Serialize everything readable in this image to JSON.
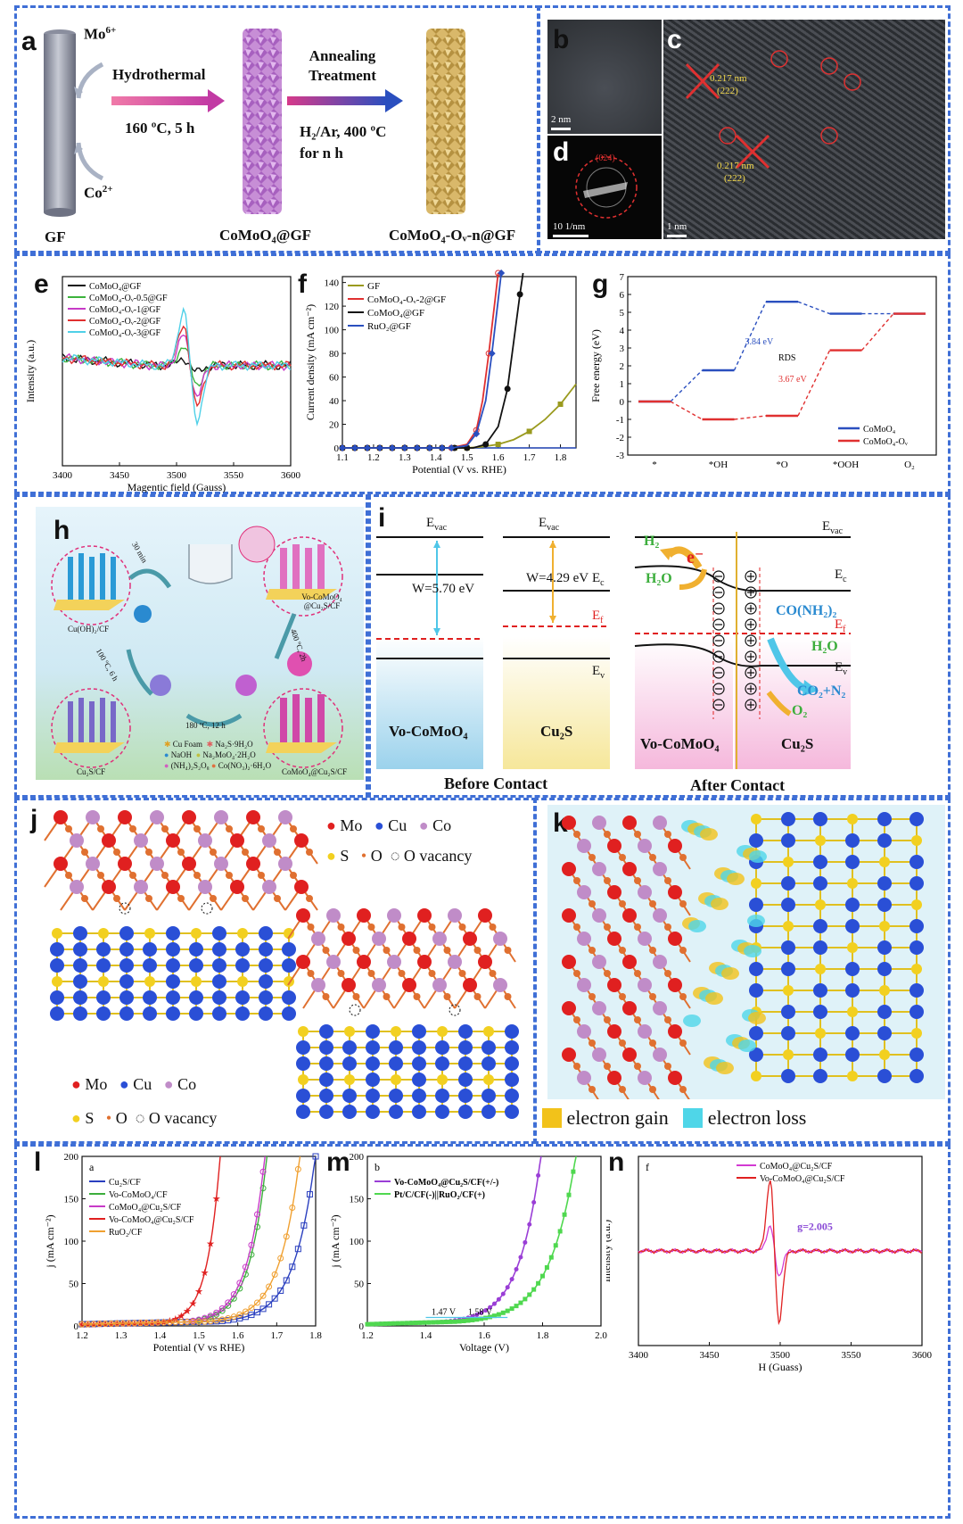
{
  "colors": {
    "frame": "#3f6fd6"
  },
  "panel_a": {
    "label": "a",
    "ion1": "Mo",
    "ion1_sup": "6+",
    "ion2": "Co",
    "ion2_sup": "2+",
    "step1_title": "Hydrothermal",
    "step1_cond": "160 ºC, 5 h",
    "step2_title": "Annealing Treatment",
    "step2_cond1": "H₂/Ar, 400 ºC",
    "step2_cond2": "for n h",
    "cap1": "GF",
    "cap2": "CoMoO₄@GF",
    "cap3": "CoMoO₄-Oᵥ-n@GF"
  },
  "panel_b": {
    "label": "b",
    "scale": "2 nm"
  },
  "panel_c": {
    "label": "c",
    "scale": "1 nm",
    "dspacing1": "0.217 nm",
    "plane1": "(222)",
    "dspacing2": "0.217 nm",
    "plane2": "(222)"
  },
  "panel_d": {
    "label": "d",
    "scale": "10 1/nm",
    "ring": "(024)"
  },
  "panel_e": {
    "label": "e",
    "xlabel": "Magentic field (Gauss)",
    "ylabel": "Intensity (a.u.)"
  },
  "panel_f": {
    "label": "f",
    "xlabel": "Potential (V vs. RHE)",
    "ylabel": "Current density (mA cm⁻²)"
  },
  "panel_g": {
    "label": "g",
    "ylabel": "Free energy (eV)",
    "steps": [
      "*",
      "*OH",
      "*O",
      "*OOH",
      "O₂"
    ],
    "ann1": "3.84 eV",
    "ann2": "3.67 eV",
    "ann3": "RDS",
    "legend": [
      "CoMoO₄",
      "CoMoO₄-Oᵥ"
    ]
  },
  "panel_h": {
    "label": "h",
    "s1": "Cu(OH)₂/CF",
    "s2": "Cu₂S/CF",
    "s3": "CoMoO₄@Cu₂S/CF",
    "s4": "Vo-CoMoO₄ @Cu₂S/CF",
    "t1": "30 min",
    "t2": "100 ºC, 6 h",
    "t3": "180 ºC, 12 h",
    "t4": "400 ºC, 2h",
    "legend": [
      "Cu Foam",
      "Na₂S·9H₂O",
      "NaOH",
      "Na₂MoO₄·2H₂O",
      "(NH₄)₂S₂O₈",
      "Co(NO₃)₂·6H₂O"
    ]
  },
  "panel_i": {
    "label": "i",
    "evac": "E",
    "evac_sub": "vac",
    "w1": "W=5.70 eV",
    "w2": "W=4.29 eV",
    "ec": "E",
    "ec_sub": "c",
    "ef": "E",
    "ef_sub": "f",
    "ev": "E",
    "ev_sub": "v",
    "mat1": "Vo-CoMoO₄",
    "mat2": "Cu₂S",
    "before": "Before Contact",
    "after": "After Contact",
    "h2": "H₂",
    "h2o": "H₂O",
    "electron": "e⁻",
    "urea": "CO(NH₂)₂",
    "h2o_b": "H₂O",
    "products": "CO₂+N₂",
    "o2": "O₂"
  },
  "panel_j": {
    "label": "j",
    "legend": [
      "Mo",
      "Cu",
      "Co",
      "S",
      "O",
      "O vacancy"
    ]
  },
  "panel_k": {
    "label": "k",
    "legend": [
      "electron gain",
      "electron loss"
    ]
  },
  "panel_l": {
    "label": "l",
    "sublabel": "a",
    "xlabel": "Potential (V vs RHE)",
    "ylabel": "j (mA cm⁻²)",
    "legend": [
      "Cu₂S/CF",
      "Vo-CoMoO₄/CF",
      "CoMoO₄@Cu₂S/CF",
      "Vo-CoMoO₄@Cu₂S/CF",
      "RuO₂/CF"
    ]
  },
  "panel_m": {
    "label": "m",
    "sublabel": "b",
    "xlabel": "Voltage (V)",
    "ylabel": "j (mA cm⁻²)",
    "legend": [
      "Vo-CoMoO₄@Cu₂S/CF(+/-)",
      "Pt/C/CF(-)||RuO₂/CF(+)"
    ],
    "ann1": "1.47 V",
    "ann2": "1.58 V"
  },
  "panel_n": {
    "label": "n",
    "sublabel": "f",
    "xlabel": "H (Guass)",
    "ylabel": "Intensity (a.u.)",
    "legend": [
      "CoMoO₄@Cu₂S/CF",
      "Vo-CoMoO₄@Cu₂S/CF"
    ],
    "gval": "g=2.005"
  },
  "chart_data": [
    {
      "type": "line",
      "title": "",
      "xlabel": "Magentic field (Gauss)",
      "ylabel": "Intensity (a.u.)",
      "xlim": [
        3400,
        3600
      ],
      "xticks": [
        3400,
        3450,
        3500,
        3550,
        3600
      ],
      "series": [
        {
          "name": "CoMoO₄@GF",
          "color": "#111111",
          "amp": 0.12
        },
        {
          "name": "CoMoO₄-Oᵥ-0.5@GF",
          "color": "#3cb33c",
          "amp": 0.35
        },
        {
          "name": "CoMoO₄-Oᵥ-1@GF",
          "color": "#c73ac7",
          "amp": 0.55
        },
        {
          "name": "CoMoO₄-Oᵥ-2@GF",
          "color": "#e03030",
          "amp": 0.75
        },
        {
          "name": "CoMoO₄-Oᵥ-3@GF",
          "color": "#4fd0e8",
          "amp": 1.0
        }
      ]
    },
    {
      "type": "line",
      "title": "",
      "xlabel": "Potential (V vs. RHE)",
      "ylabel": "Current density (mA cm⁻²)",
      "xlim": [
        1.1,
        1.85
      ],
      "ylim": [
        0,
        145
      ],
      "xticks": [
        1.1,
        1.2,
        1.3,
        1.4,
        1.5,
        1.6,
        1.7,
        1.8
      ],
      "yticks": [
        0,
        20,
        40,
        60,
        80,
        100,
        120,
        140
      ],
      "series": [
        {
          "name": "GF",
          "color": "#9a9a1e",
          "x": [
            1.5,
            1.55,
            1.6,
            1.65,
            1.7,
            1.75,
            1.8,
            1.85
          ],
          "y": [
            0,
            1,
            3,
            7,
            14,
            24,
            37,
            54
          ]
        },
        {
          "name": "CoMoO₄-Oᵥ-2@GF",
          "color": "#e03030",
          "x": [
            1.45,
            1.5,
            1.53,
            1.55,
            1.57,
            1.59,
            1.6
          ],
          "y": [
            0,
            3,
            15,
            40,
            80,
            125,
            148
          ]
        },
        {
          "name": "CoMoO₄@GF",
          "color": "#111111",
          "x": [
            1.52,
            1.56,
            1.6,
            1.63,
            1.65,
            1.67,
            1.68
          ],
          "y": [
            0,
            3,
            18,
            50,
            90,
            130,
            148
          ]
        },
        {
          "name": "RuO₂@GF",
          "color": "#2a4fbf",
          "x": [
            1.45,
            1.5,
            1.53,
            1.56,
            1.58,
            1.6,
            1.61
          ],
          "y": [
            0,
            2,
            12,
            40,
            80,
            125,
            148
          ]
        }
      ]
    },
    {
      "type": "line",
      "title": "",
      "ylabel": "Free energy (eV)",
      "categories": [
        "*",
        "*OH",
        "*O",
        "*OOH",
        "O₂"
      ],
      "ylim": [
        -3,
        7
      ],
      "yticks": [
        -3,
        -2,
        -1,
        0,
        1,
        2,
        3,
        4,
        5,
        6,
        7
      ],
      "series": [
        {
          "name": "CoMoO₄",
          "color": "#2a4fbf",
          "values": [
            0,
            1.75,
            5.59,
            4.92,
            4.92
          ]
        },
        {
          "name": "CoMoO₄-Oᵥ",
          "color": "#e03030",
          "values": [
            0,
            -1.0,
            -0.8,
            2.87,
            4.92
          ]
        }
      ]
    },
    {
      "type": "line",
      "title": "",
      "xlabel": "Potential (V vs RHE)",
      "ylabel": "j (mA cm⁻²)",
      "xlim": [
        1.2,
        1.8
      ],
      "ylim": [
        0,
        200
      ],
      "xticks": [
        1.2,
        1.3,
        1.4,
        1.5,
        1.6,
        1.7,
        1.8
      ],
      "yticks": [
        0,
        50,
        100,
        150,
        200
      ],
      "series": [
        {
          "name": "Cu₂S/CF",
          "color": "#2a3fbf",
          "onset": 1.55,
          "end": 1.8
        },
        {
          "name": "Vo-CoMoO₄/CF",
          "color": "#3cae3c",
          "onset": 1.47,
          "end": 1.675
        },
        {
          "name": "CoMoO₄@Cu₂S/CF",
          "color": "#c73ac7",
          "onset": 1.46,
          "end": 1.67
        },
        {
          "name": "Vo-CoMoO₄@Cu₂S/CF",
          "color": "#e02020",
          "onset": 1.4,
          "end": 1.555
        },
        {
          "name": "RuO₂/CF",
          "color": "#f0a030",
          "onset": 1.52,
          "end": 1.76
        }
      ]
    },
    {
      "type": "line",
      "title": "",
      "xlabel": "Voltage (V)",
      "ylabel": "j (mA cm⁻²)",
      "xlim": [
        1.2,
        2.0
      ],
      "ylim": [
        0,
        200
      ],
      "xticks": [
        1.2,
        1.4,
        1.6,
        1.8,
        2.0
      ],
      "yticks": [
        0,
        50,
        100,
        150,
        200
      ],
      "series": [
        {
          "name": "Vo-CoMoO₄@Cu₂S/CF(+/-)",
          "color": "#9a3ed6",
          "onset": 1.45,
          "end": 1.795
        },
        {
          "name": "Pt/C/CF(-)||RuO₂/CF(+)",
          "color": "#4fd84f",
          "onset": 1.5,
          "end": 1.915
        }
      ]
    },
    {
      "type": "line",
      "title": "",
      "xlabel": "H (Guass)",
      "ylabel": "Intensity (a.u.)",
      "xlim": [
        3400,
        3600
      ],
      "xticks": [
        3400,
        3450,
        3500,
        3550,
        3600
      ],
      "series": [
        {
          "name": "CoMoO₄@Cu₂S/CF",
          "color": "#d23ad2",
          "amp": 0.35
        },
        {
          "name": "Vo-CoMoO₄@Cu₂S/CF",
          "color": "#e02020",
          "amp": 1.0
        }
      ]
    }
  ]
}
